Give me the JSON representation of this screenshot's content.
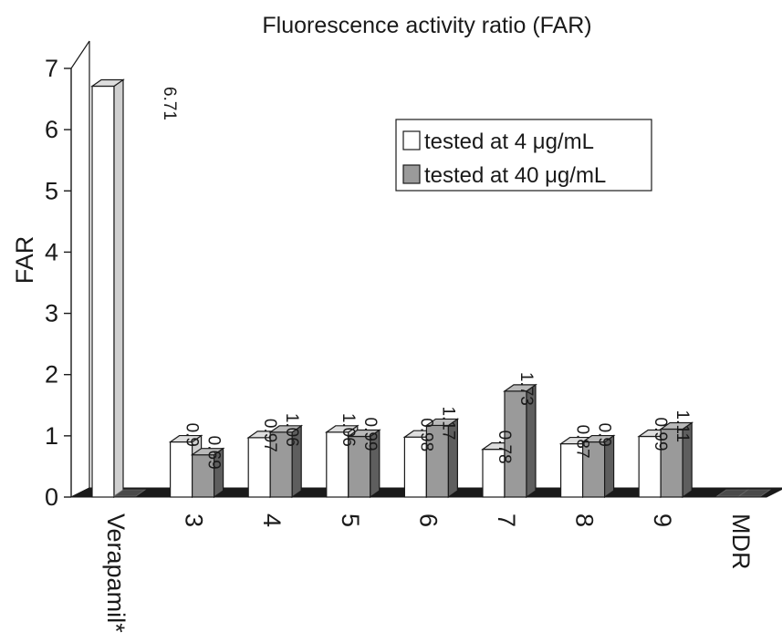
{
  "colors": {
    "series1_fill": "#ffffff",
    "series2_fill": "#9a9a9a",
    "series2_side": "#5e5e5e",
    "series2_top": "#b9b9b9",
    "series1_side": "#cfcfcf",
    "series1_top": "#dedede",
    "floor": "#1a1a1a",
    "axis": "#1a1a1a"
  },
  "chart_data": {
    "type": "bar",
    "title": "Fluorescence activity ratio (FAR)",
    "xlabel": "",
    "ylabel": "FAR",
    "ylim": [
      0,
      7
    ],
    "yticks": [
      "0",
      "1",
      "2",
      "3",
      "4",
      "5",
      "6",
      "7"
    ],
    "categories": [
      "Verapamil*",
      "3",
      "4",
      "5",
      "6",
      "7",
      "8",
      "9",
      "MDR"
    ],
    "legend_position": "top-right",
    "grid": false,
    "series": [
      {
        "name": "tested at 4 μg/mL",
        "values": [
          6.71,
          0.9,
          0.97,
          1.06,
          0.98,
          0.78,
          0.87,
          0.99,
          0
        ],
        "labels": [
          "6.71",
          "0.9",
          "0.97",
          "1.06",
          "0.98",
          "0.78",
          "0.87",
          "0.99",
          ""
        ]
      },
      {
        "name": "tested at 40 μg/mL",
        "values": [
          0,
          0.69,
          1.06,
          0.99,
          1.17,
          1.73,
          0.9,
          1.11,
          0
        ],
        "labels": [
          "",
          "0.69",
          "1.06",
          "0.99",
          "1.17",
          "1.73",
          "0.9",
          "1.11",
          ""
        ]
      }
    ]
  }
}
